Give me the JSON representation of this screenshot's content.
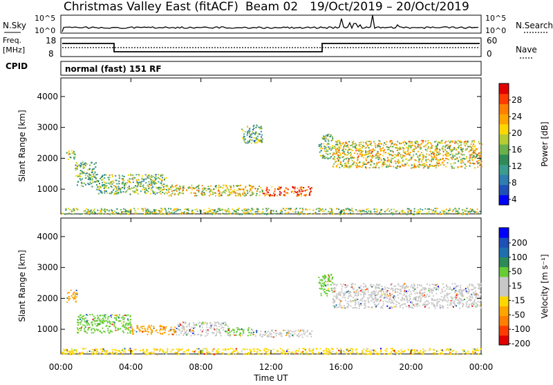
{
  "header": {
    "title": "Christmas Valley East (fitACF)",
    "beam": "Beam 02",
    "date_range": "19/Oct/2019 – 20/Oct/2019"
  },
  "top_panels": {
    "nsky_label": "N.Sky",
    "nsky_ticks": [
      "10^5",
      "10^0"
    ],
    "nsearch_label": "N.Search",
    "nsearch_ticks": [
      "10^5",
      "10^0"
    ],
    "freq_label": "Freq.",
    "freq_unit": "[MHz]",
    "freq_ticks": [
      "18",
      "8"
    ],
    "nave_label": "Nave",
    "nave_ticks": [
      "60",
      "0"
    ],
    "cpid_label": "CPID",
    "cpid_text": "normal (fast) 151 RF"
  },
  "chart_data": [
    {
      "type": "heatmap",
      "name": "power-panel",
      "ylabel": "Slant Range [km]",
      "yticks": [
        "4000",
        "3000",
        "2000",
        "1000"
      ],
      "ylim": [
        200,
        4600
      ],
      "xlim": [
        0,
        24
      ],
      "colorbar": {
        "label": "Power [dB]",
        "ticks": [
          "28",
          "24",
          "20",
          "16",
          "12",
          "8",
          "4"
        ],
        "colors": [
          "#0000ff",
          "#1e50b8",
          "#2e7db0",
          "#3a9c8c",
          "#2e8b57",
          "#6ab04c",
          "#b5cc33",
          "#ffd700",
          "#ffa500",
          "#ff7f00",
          "#ff3c00",
          "#e00000"
        ]
      },
      "regions": [
        {
          "x0": 0.3,
          "x1": 0.8,
          "y0": 1950,
          "y1": 2300,
          "level": 0.5
        },
        {
          "x0": 0.8,
          "x1": 2.0,
          "y0": 1100,
          "y1": 1900,
          "level": 0.4
        },
        {
          "x0": 2.0,
          "x1": 6.0,
          "y0": 850,
          "y1": 1500,
          "level": 0.45
        },
        {
          "x0": 6.0,
          "x1": 11.5,
          "y0": 800,
          "y1": 1150,
          "level": 0.6
        },
        {
          "x0": 11.5,
          "x1": 14.3,
          "y0": 800,
          "y1": 1100,
          "level": 0.85
        },
        {
          "x0": 10.3,
          "x1": 11.5,
          "y0": 2500,
          "y1": 3100,
          "level": 0.4
        },
        {
          "x0": 14.7,
          "x1": 15.5,
          "y0": 2000,
          "y1": 2800,
          "level": 0.45
        },
        {
          "x0": 15.5,
          "x1": 24.0,
          "y0": 1700,
          "y1": 2600,
          "level": 0.6
        },
        {
          "x0": 0.0,
          "x1": 24.0,
          "y0": 200,
          "y1": 400,
          "level": 0.5
        }
      ]
    },
    {
      "type": "heatmap",
      "name": "velocity-panel",
      "ylabel": "Slant Range [km]",
      "yticks": [
        "4000",
        "3000",
        "2000",
        "1000"
      ],
      "ylim": [
        200,
        4600
      ],
      "xlim": [
        0,
        24
      ],
      "xlabel": "Time UT",
      "xticks": [
        "00:00",
        "04:00",
        "08:00",
        "12:00",
        "16:00",
        "20:00",
        "00:00"
      ],
      "colorbar": {
        "label": "Velocity [m s⁻¹]",
        "ticks": [
          "200",
          "100",
          "50",
          "15",
          "-15",
          "-50",
          "-100",
          "-200"
        ],
        "colors": [
          "#e00000",
          "#ff3c00",
          "#ff7f00",
          "#ffa500",
          "#ffd700",
          "#c8c8c8",
          "#c8c8c8",
          "#66cc33",
          "#2e8b57",
          "#1e6fb0",
          "#1e50b8",
          "#0000ff"
        ]
      },
      "regions": [
        {
          "x0": 0.3,
          "x1": 0.9,
          "y0": 1900,
          "y1": 2300,
          "color": "#ffa500"
        },
        {
          "x0": 0.9,
          "x1": 4.0,
          "y0": 900,
          "y1": 1500,
          "color": "#66cc33"
        },
        {
          "x0": 4.0,
          "x1": 6.5,
          "y0": 850,
          "y1": 1150,
          "color": "#ffa500"
        },
        {
          "x0": 6.5,
          "x1": 9.5,
          "y0": 800,
          "y1": 1250,
          "color": "#c8c8c8"
        },
        {
          "x0": 9.5,
          "x1": 11.0,
          "y0": 800,
          "y1": 1100,
          "color": "#66cc33"
        },
        {
          "x0": 11.0,
          "x1": 14.3,
          "y0": 750,
          "y1": 1000,
          "color": "#c8c8c8"
        },
        {
          "x0": 14.7,
          "x1": 15.5,
          "y0": 2100,
          "y1": 2800,
          "color": "#66cc33"
        },
        {
          "x0": 15.5,
          "x1": 24.0,
          "y0": 1700,
          "y1": 2500,
          "color": "#c8c8c8"
        },
        {
          "x0": 0.0,
          "x1": 24.0,
          "y0": 200,
          "y1": 400,
          "color": "#ffd700"
        }
      ]
    }
  ]
}
